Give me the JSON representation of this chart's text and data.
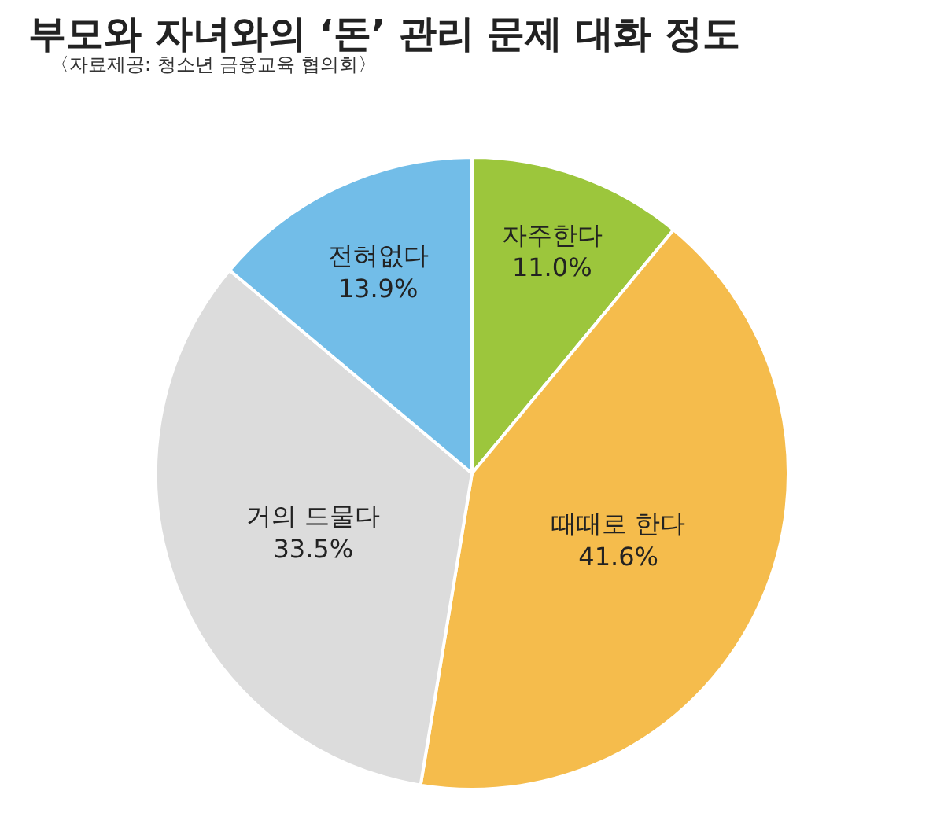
{
  "chart_data": {
    "type": "pie",
    "title": "부모와 자녀와의 ‘돈’ 관리 문제 대화 정도",
    "subtitle": "〈자료제공: 청소년 금융교육 협의회〉",
    "categories": [
      "자주한다",
      "때때로 한다",
      "거의 드물다",
      "전혀없다"
    ],
    "values": [
      11.0,
      41.6,
      33.5,
      13.9
    ],
    "value_labels": [
      "11.0%",
      "41.6%",
      "33.5%",
      "13.9%"
    ],
    "colors": [
      "#9cc63c",
      "#f5bc4c",
      "#dcdcdc",
      "#72bde8"
    ],
    "legend": false
  }
}
